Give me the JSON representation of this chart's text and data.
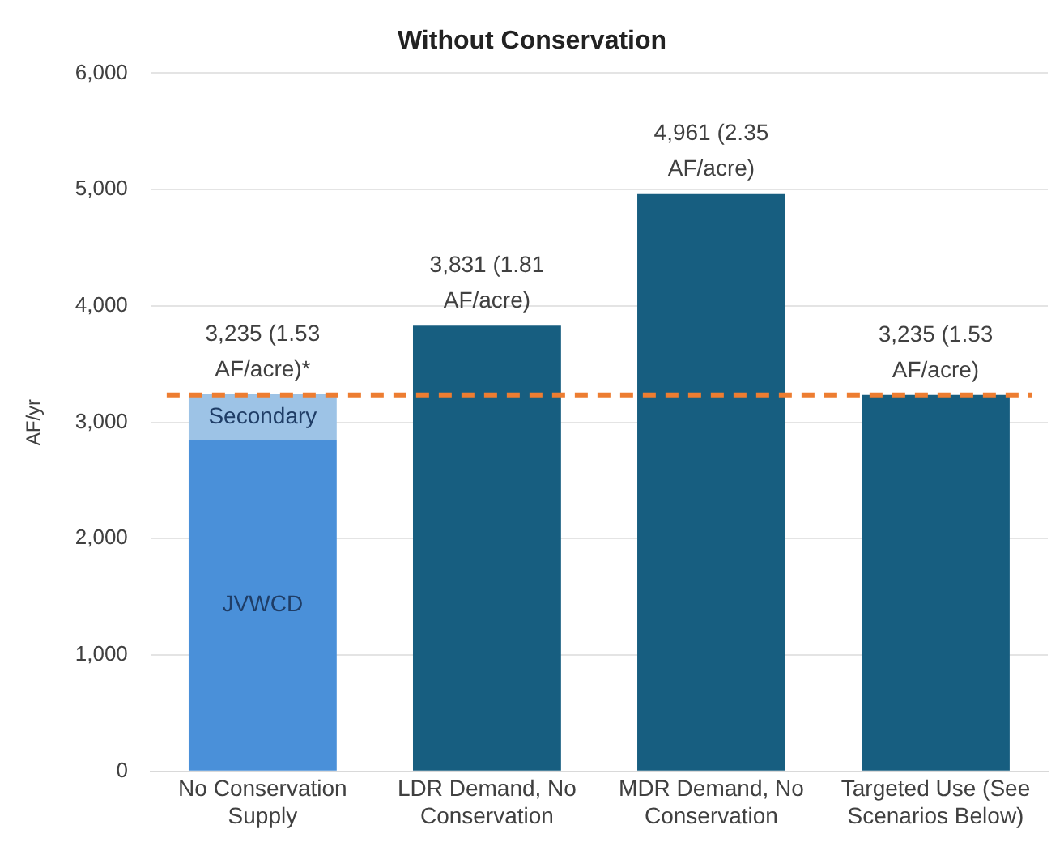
{
  "chart_data": {
    "type": "bar",
    "title": "Without Conservation",
    "ylabel": "AF/yr",
    "categories": [
      "No Conservation Supply",
      "LDR Demand, No Conservation",
      "MDR Demand, No Conservation",
      "Targeted Use (See Scenarios Below)"
    ],
    "stacked": true,
    "series": [
      {
        "name": "JVWCD",
        "color": "#4a90d9",
        "values": [
          2850,
          null,
          null,
          null
        ]
      },
      {
        "name": "Secondary",
        "color": "#9dc3e6",
        "values": [
          390,
          null,
          null,
          null
        ]
      },
      {
        "color": "#175e80",
        "values": [
          null,
          3831,
          4961,
          3235
        ]
      }
    ],
    "totals": [
      "3,235 (1.53 AF/acre)*",
      "3,831 (1.81 AF/acre)",
      "4,961 (2.35 AF/acre)",
      "3,235 (1.53 AF/acre)"
    ],
    "ylim": [
      0,
      6000
    ],
    "yticks": [
      0,
      {
        "value": 1000,
        "label": "1,000"
      },
      {
        "value": 2000,
        "label": "2,000"
      },
      {
        "value": 3000,
        "label": "3,000"
      },
      {
        "value": 4000,
        "label": "4,000"
      },
      {
        "value": 5000,
        "label": "5,000"
      },
      {
        "value": 6000,
        "label": "6,000"
      }
    ],
    "ref_lines": [
      {
        "axis": "y",
        "value": 3235,
        "color": "#ed7d31",
        "line_style": "dashed"
      }
    ],
    "grid": "y",
    "legend": false
  }
}
